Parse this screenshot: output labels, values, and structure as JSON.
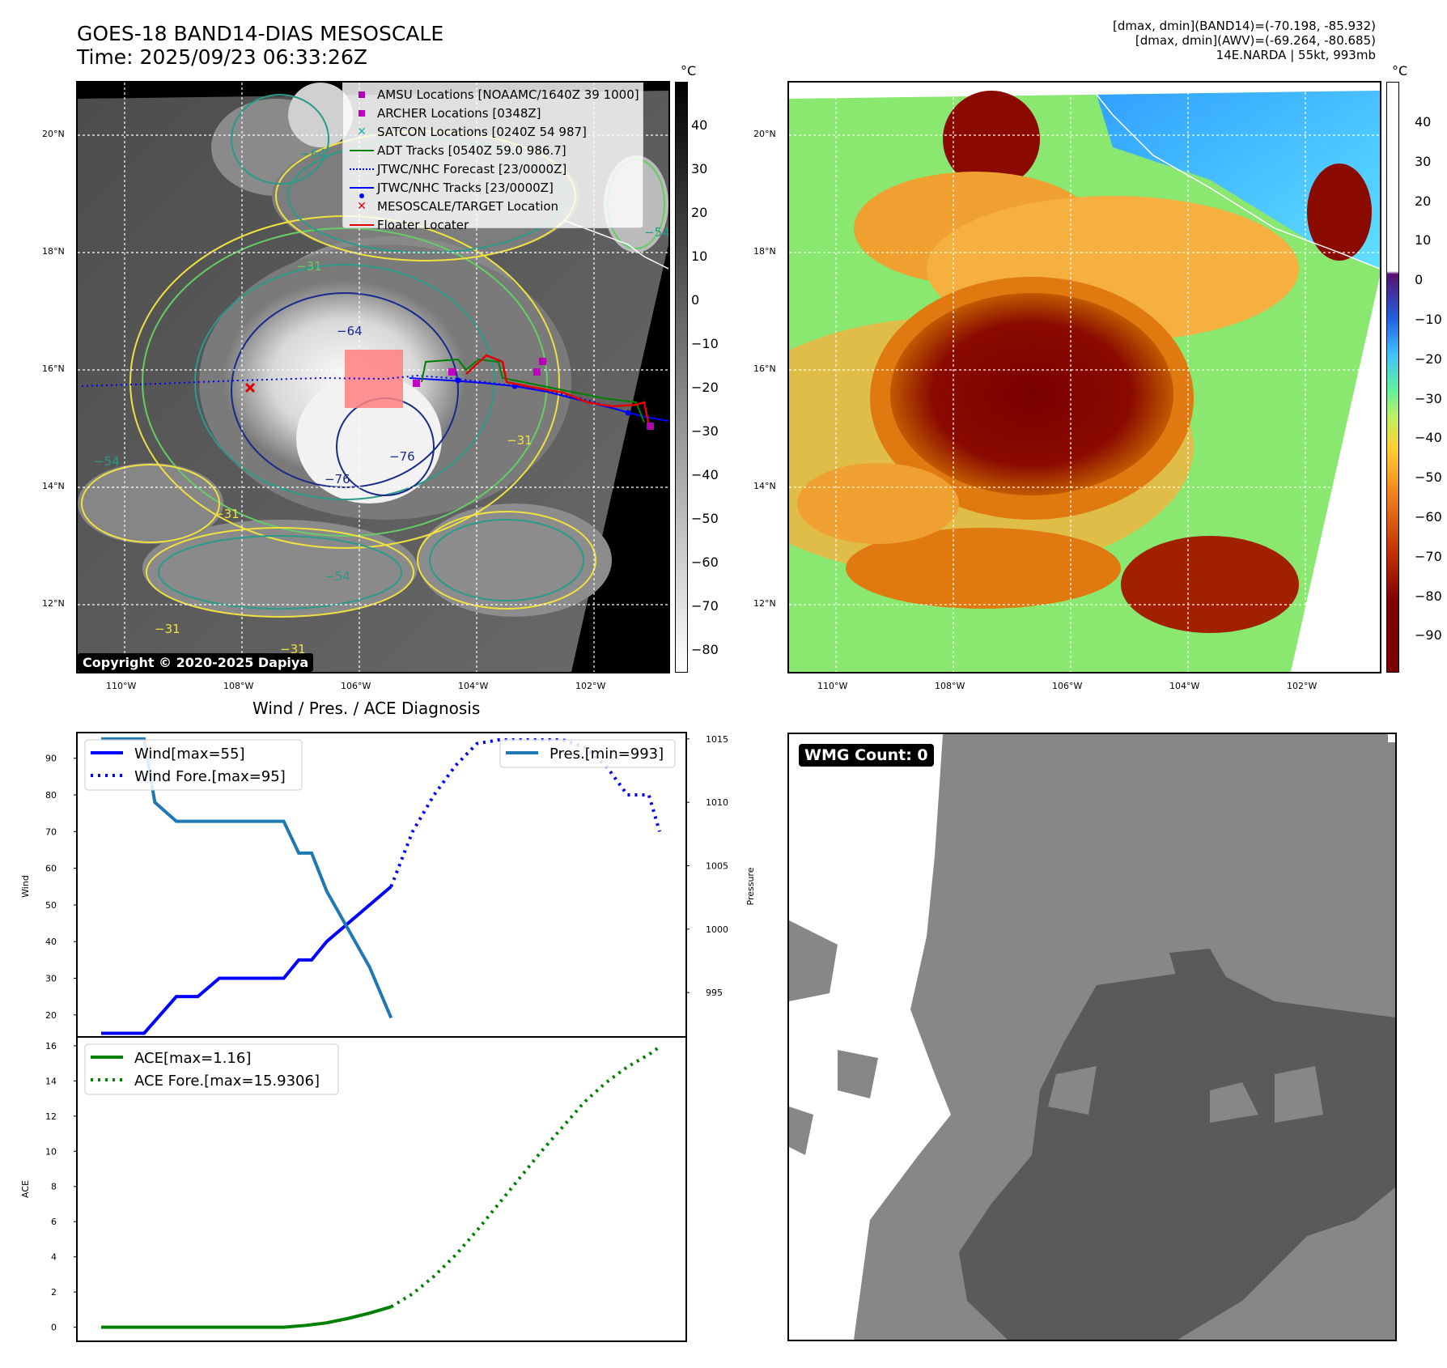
{
  "header": {
    "title_line1": "GOES-18 BAND14-DIAS MESOSCALE",
    "title_line2": "Time: 2025/09/23 06:33:26Z",
    "info_line1": "[dmax, dmin](BAND14)=(-70.198, -85.932)",
    "info_line2": "[dmax, dmin](AWV)=(-69.264, -80.685)",
    "info_line3": "14E.NARDA | 55kt, 993mb"
  },
  "map_axes": {
    "lat_labels": [
      "20°N",
      "18°N",
      "16°N",
      "14°N",
      "12°N"
    ],
    "lon_labels": [
      "110°W",
      "108°W",
      "106°W",
      "104°W",
      "102°W"
    ]
  },
  "colorbar_left": {
    "unit": "°C",
    "ticks": [
      "40",
      "30",
      "20",
      "10",
      "0",
      "−10",
      "−20",
      "−30",
      "−40",
      "−50",
      "−60",
      "−70",
      "−80"
    ]
  },
  "colorbar_right": {
    "unit": "°C",
    "ticks": [
      "40",
      "30",
      "20",
      "10",
      "0",
      "−10",
      "−20",
      "−30",
      "−40",
      "−50",
      "−60",
      "−70",
      "−80",
      "−90"
    ]
  },
  "contour_labels": [
    "−64",
    "−64",
    "−31",
    "−54",
    "−76",
    "−76",
    "−31",
    "−54",
    "−31",
    "−31",
    "−31",
    "−54"
  ],
  "legend": [
    {
      "label": "AMSU Locations [NOAAMC/1640Z 39 1000]",
      "color": "#b000b0",
      "symbol": "square"
    },
    {
      "label": "ARCHER Locations [0348Z]",
      "color": "#c000c0",
      "symbol": "square"
    },
    {
      "label": "SATCON Locations [0240Z 54 987]",
      "color": "#20b0b0",
      "symbol": "x"
    },
    {
      "label": "ADT Tracks [0540Z 59.0 986.7]",
      "color": "#008000",
      "symbol": "line"
    },
    {
      "label": "JTWC/NHC Forecast [23/0000Z]",
      "color": "#0000ff",
      "symbol": "dotted"
    },
    {
      "label": "JTWC/NHC Tracks [23/0000Z]",
      "color": "#0000ff",
      "symbol": "line-dot"
    },
    {
      "label": "MESOSCALE/TARGET Location",
      "color": "#e00000",
      "symbol": "x"
    },
    {
      "label": "Floater Locater",
      "color": "#e00000",
      "symbol": "line"
    }
  ],
  "copyright": "Copyright © 2020-2025 Dapiya",
  "wmg_count": "WMG Count: 0",
  "diagnosis_title": "Wind / Pres. / ACE Diagnosis",
  "chart_data": [
    {
      "type": "line",
      "title": "Wind / Pres. / ACE Diagnosis",
      "ylabel": "Wind",
      "y2label": "Pressure",
      "ylim": [
        14,
        97
      ],
      "y2lim": [
        991.5,
        1015.5
      ],
      "yticks": [
        20,
        30,
        40,
        50,
        60,
        70,
        80,
        90
      ],
      "y2ticks": [
        995,
        1000,
        1005,
        1010,
        1015
      ],
      "x": [
        0,
        1,
        2,
        3,
        4,
        5,
        6,
        7,
        8,
        9,
        10,
        11,
        12,
        13,
        14,
        15,
        16,
        17,
        18,
        19,
        20,
        21,
        22,
        23,
        24,
        25,
        26
      ],
      "series": [
        {
          "name": "Wind[max=55]",
          "axis": "left",
          "style": "solid",
          "color": "#0000ff",
          "x": [
            0,
            2,
            3.5,
            4.5,
            5.5,
            6.5,
            8.5,
            9.2,
            9.8,
            10.5,
            11.5,
            12.5,
            13.5
          ],
          "values": [
            15,
            15,
            25,
            25,
            30,
            30,
            30,
            35,
            35,
            40,
            45,
            50,
            55
          ]
        },
        {
          "name": "Wind Fore.[max=95]",
          "axis": "left",
          "style": "dotted",
          "color": "#0000ff",
          "x": [
            13.5,
            14.5,
            15.5,
            16.5,
            17.5,
            18.5,
            19.5,
            20.5,
            21.5,
            22.5,
            23.5,
            24.5,
            25.5,
            26
          ],
          "values": [
            55,
            70,
            80,
            88,
            94,
            95,
            95,
            95,
            95,
            93,
            88,
            80,
            80,
            70
          ]
        },
        {
          "name": "Pres.[min=993]",
          "axis": "right",
          "style": "solid",
          "color": "#1f77b4",
          "x": [
            0,
            1,
            2,
            2.5,
            3.5,
            4.5,
            5.5,
            6.5,
            8.5,
            9.2,
            9.8,
            10.5,
            11.5,
            12.5,
            13.5
          ],
          "values": [
            1015,
            1015,
            1015,
            1010,
            1008.5,
            1008.5,
            1008.5,
            1008.5,
            1008.5,
            1006,
            1006,
            1003,
            1000,
            997,
            993
          ]
        }
      ]
    },
    {
      "type": "line",
      "ylabel": "ACE",
      "ylim": [
        -0.8,
        16.5
      ],
      "yticks": [
        0,
        2,
        4,
        6,
        8,
        10,
        12,
        14,
        16
      ],
      "series": [
        {
          "name": "ACE[max=1.16]",
          "style": "solid",
          "color": "#008000",
          "x": [
            0,
            2,
            4,
            6,
            8.5,
            9.5,
            10.5,
            11.5,
            12.5,
            13.5
          ],
          "values": [
            0,
            0,
            0,
            0,
            0,
            0.1,
            0.25,
            0.5,
            0.8,
            1.16
          ]
        },
        {
          "name": "ACE Fore.[max=15.9306]",
          "style": "dotted",
          "color": "#008000",
          "x": [
            13.5,
            14.5,
            15.5,
            16.5,
            17.5,
            18.5,
            19.5,
            20.5,
            21.5,
            22.5,
            23.5,
            24.5,
            25.5,
            26
          ],
          "values": [
            1.16,
            1.9,
            2.9,
            4.1,
            5.5,
            7.0,
            8.5,
            10.0,
            11.4,
            12.8,
            13.9,
            14.8,
            15.5,
            15.93
          ]
        }
      ]
    }
  ]
}
